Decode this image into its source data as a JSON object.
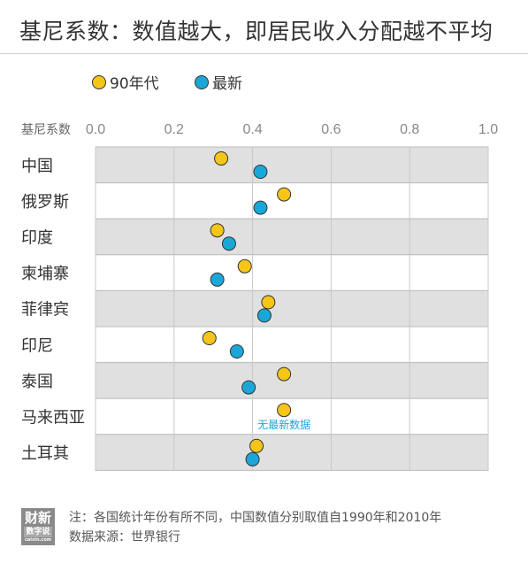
{
  "title": "基尼系数：数值越大，即居民收入分配越不平均",
  "legend": [
    {
      "label": "90年代",
      "color": "#f5c518"
    },
    {
      "label": "最新",
      "color": "#1aa7d8"
    }
  ],
  "axis_label": "基尼系数",
  "footer": {
    "logo_line1": "财新",
    "logo_line2": "数字说",
    "logo_line3": "caixin.com",
    "note": "注：各国统计年份有所不同，中国数值分别取值自1990年和2010年",
    "source": "数据来源：世界银行"
  },
  "chart_data": {
    "type": "scatter",
    "title": "基尼系数：数值越大，即居民收入分配越不平均",
    "xlabel": "基尼系数",
    "xlim": [
      0,
      1.0
    ],
    "ticks": [
      "0.0",
      "0.2",
      "0.4",
      "0.6",
      "0.8",
      "1.0"
    ],
    "tick_values": [
      0,
      0.2,
      0.4,
      0.6,
      0.8,
      1.0
    ],
    "grid": true,
    "legend_position": "top-left",
    "categories": [
      "中国",
      "俄罗斯",
      "印度",
      "柬埔寨",
      "菲律宾",
      "印尼",
      "泰国",
      "马来西亚",
      "土耳其"
    ],
    "series": [
      {
        "name": "90年代",
        "color": "#f5c518",
        "values": [
          0.32,
          0.48,
          0.31,
          0.38,
          0.44,
          0.29,
          0.48,
          0.48,
          0.41
        ]
      },
      {
        "name": "最新",
        "color": "#1aa7d8",
        "values": [
          0.42,
          0.42,
          0.34,
          0.31,
          0.43,
          0.36,
          0.39,
          null,
          0.4
        ]
      }
    ],
    "annotations": [
      {
        "category": "马来西亚",
        "text": "无最新数据",
        "color": "#1aa7d8"
      }
    ],
    "row_colors": [
      "#e0e0e0",
      "#ffffff"
    ]
  }
}
